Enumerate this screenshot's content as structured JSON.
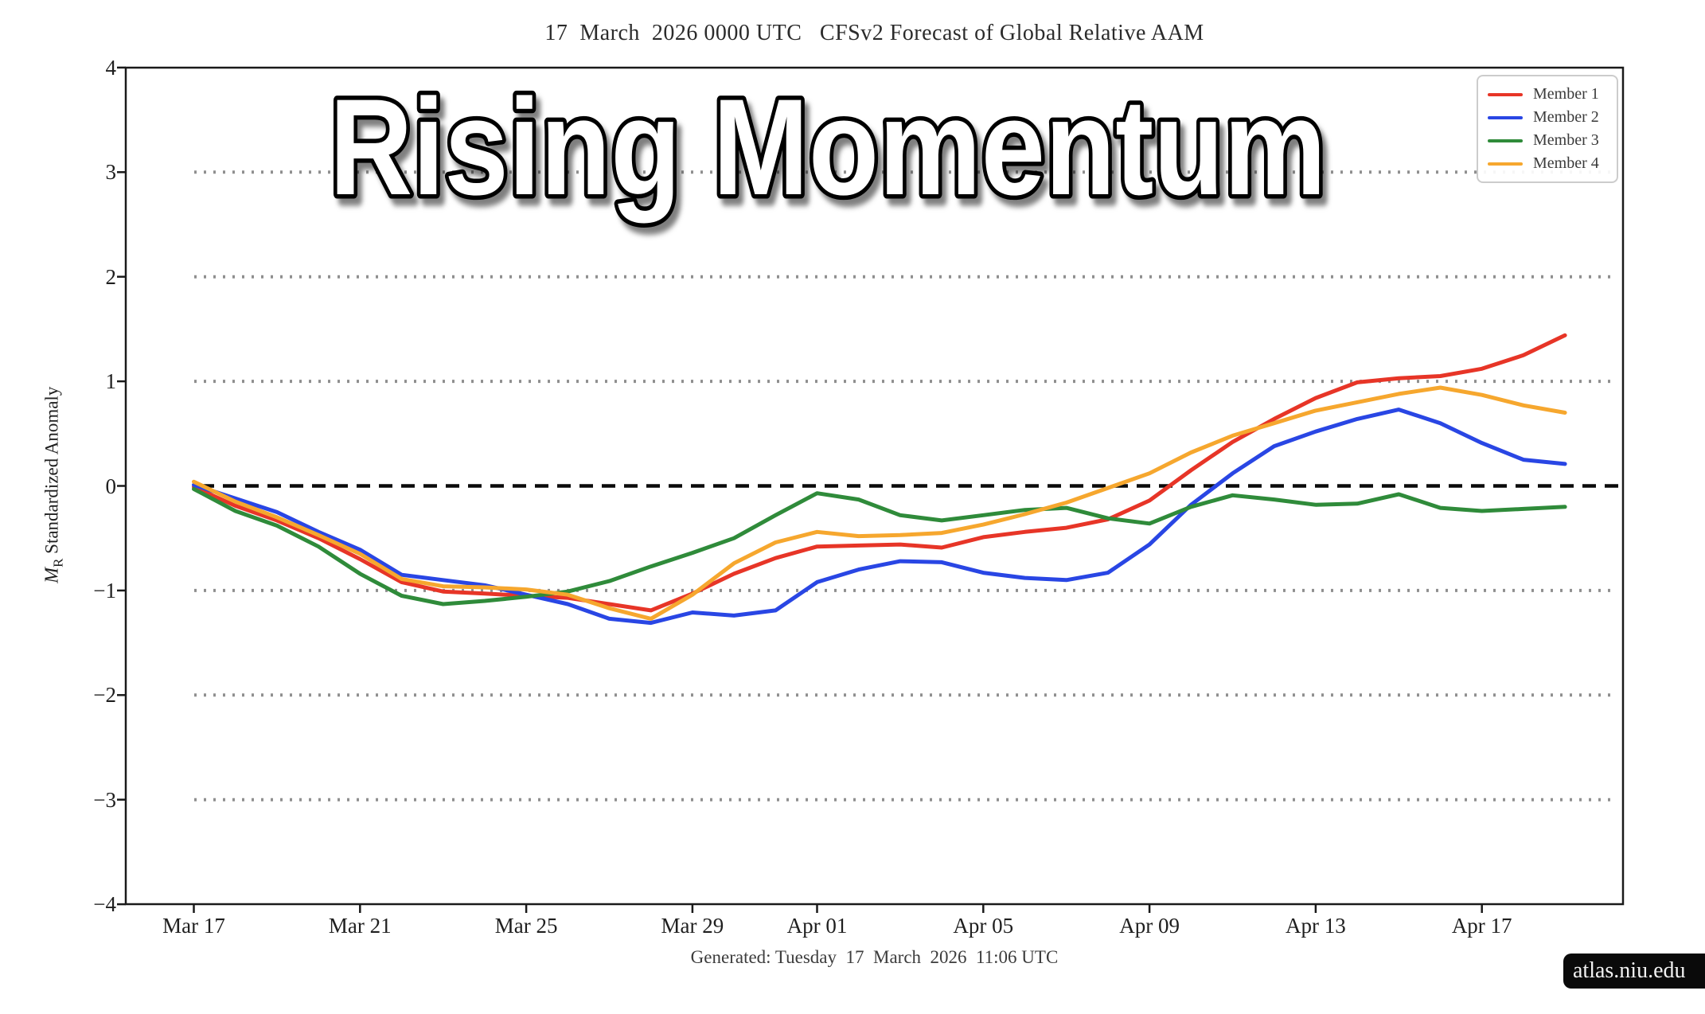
{
  "header": {
    "title": "17  March  2026 0000 UTC   CFSv2 Forecast of Global Relative AAM"
  },
  "overlay": {
    "text": "Rising Momentum"
  },
  "y_axis": {
    "label_var": "M",
    "label_sub": "R",
    "label_rest": " Standardized Anomaly"
  },
  "legend": {
    "items": [
      {
        "label": "Member 1"
      },
      {
        "label": "Member 2"
      },
      {
        "label": "Member 3"
      },
      {
        "label": "Member 4"
      }
    ]
  },
  "footer": {
    "generated": "Generated: Tuesday  17  March  2026  11:06 UTC"
  },
  "badge": {
    "text": "atlas.niu.edu"
  },
  "chart_data": {
    "type": "line",
    "title": "17  March  2026 0000 UTC   CFSv2 Forecast of Global Relative AAM",
    "overlay_title": "Rising Momentum",
    "xlabel": "",
    "ylabel": "M_R Standardized Anomaly",
    "ylim": [
      -4,
      4
    ],
    "y_ticks": [
      -4,
      -3,
      -2,
      -1,
      0,
      1,
      2,
      3,
      4
    ],
    "dotted_gridlines": [
      -3,
      -2,
      -1,
      1,
      2,
      3
    ],
    "zero_line": {
      "value": 0,
      "style": "dashed-black"
    },
    "legend_position": "top-right",
    "x_unit": "days since 17 March 2026",
    "x_days": [
      0,
      1,
      2,
      3,
      4,
      5,
      6,
      7,
      8,
      9,
      10,
      11,
      12,
      13,
      14,
      15,
      16,
      17,
      18,
      19,
      20,
      21,
      22,
      23,
      24,
      25,
      26,
      27,
      28,
      29,
      30,
      31,
      32,
      33
    ],
    "x_tick_days": [
      0,
      4,
      8,
      12,
      15,
      19,
      23,
      27,
      31
    ],
    "x_tick_labels": [
      "Mar 17",
      "Mar 21",
      "Mar 25",
      "Mar 29",
      "Apr 01",
      "Apr 05",
      "Apr 09",
      "Apr 13",
      "Apr 17"
    ],
    "series": [
      {
        "name": "Member 1",
        "color": "#e73527",
        "values": [
          -0.01,
          -0.19,
          -0.33,
          -0.5,
          -0.7,
          -0.92,
          -1.01,
          -1.03,
          -1.05,
          -1.07,
          -1.13,
          -1.19,
          -1.03,
          -0.84,
          -0.69,
          -0.58,
          -0.57,
          -0.56,
          -0.59,
          -0.49,
          -0.44,
          -0.4,
          -0.32,
          -0.14,
          0.15,
          0.42,
          0.64,
          0.84,
          0.99,
          1.03,
          1.05,
          1.12,
          1.25,
          1.44
        ]
      },
      {
        "name": "Member 2",
        "color": "#2946e4",
        "values": [
          0.01,
          -0.12,
          -0.25,
          -0.44,
          -0.61,
          -0.85,
          -0.9,
          -0.95,
          -1.04,
          -1.13,
          -1.27,
          -1.31,
          -1.21,
          -1.24,
          -1.19,
          -0.92,
          -0.8,
          -0.72,
          -0.73,
          -0.83,
          -0.88,
          -0.9,
          -0.83,
          -0.56,
          -0.18,
          0.12,
          0.38,
          0.52,
          0.64,
          0.73,
          0.6,
          0.41,
          0.25,
          0.21
        ]
      },
      {
        "name": "Member 3",
        "color": "#2f8b3a",
        "values": [
          -0.03,
          -0.24,
          -0.38,
          -0.58,
          -0.84,
          -1.05,
          -1.13,
          -1.1,
          -1.06,
          -1.01,
          -0.91,
          -0.77,
          -0.64,
          -0.5,
          -0.28,
          -0.07,
          -0.13,
          -0.28,
          -0.33,
          -0.28,
          -0.23,
          -0.21,
          -0.31,
          -0.36,
          -0.2,
          -0.09,
          -0.13,
          -0.18,
          -0.17,
          -0.08,
          -0.21,
          -0.24,
          -0.22,
          -0.2
        ]
      },
      {
        "name": "Member 4",
        "color": "#f6a72e",
        "values": [
          0.04,
          -0.15,
          -0.3,
          -0.47,
          -0.65,
          -0.89,
          -0.96,
          -0.97,
          -0.99,
          -1.04,
          -1.17,
          -1.27,
          -1.04,
          -0.74,
          -0.54,
          -0.44,
          -0.48,
          -0.47,
          -0.45,
          -0.37,
          -0.27,
          -0.16,
          -0.02,
          0.12,
          0.32,
          0.48,
          0.6,
          0.72,
          0.8,
          0.88,
          0.94,
          0.87,
          0.77,
          0.7
        ]
      }
    ]
  }
}
